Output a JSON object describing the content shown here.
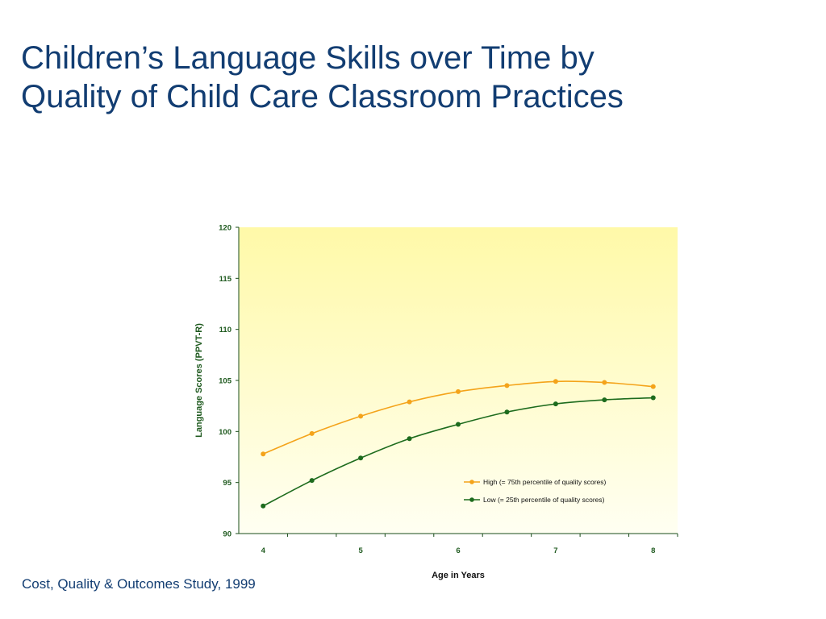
{
  "slide": {
    "title_line1": "Children’s Language Skills over Time by",
    "title_line2": "Quality of Child Care Classroom Practices",
    "source": "Cost, Quality & Outcomes Study, 1999"
  },
  "colors": {
    "title": "#123d72",
    "axis_text": "#1f5a1f",
    "axis_line": "#1a4d1a",
    "high_series": "#f4a31a",
    "low_series": "#1d6b1d",
    "plot_bg_top": "#fff9a8",
    "plot_bg_bottom": "#fffff2"
  },
  "chart_data": {
    "type": "line",
    "title": "",
    "xlabel": "Age in Years",
    "ylabel": "Language Scores (PPVT-R)",
    "xlim": [
      3.75,
      8.25
    ],
    "ylim": [
      90,
      120
    ],
    "xticks": [
      4,
      5,
      6,
      7,
      8
    ],
    "yticks": [
      90,
      95,
      100,
      105,
      110,
      115,
      120
    ],
    "grid": false,
    "legend": "bottom-right",
    "x": [
      4,
      4.5,
      5,
      5.5,
      6,
      6.5,
      7,
      7.5,
      8
    ],
    "series": [
      {
        "name": "High (= 75th percentile of quality scores)",
        "color": "#f4a31a",
        "values": [
          97.8,
          99.8,
          101.5,
          102.9,
          103.9,
          104.5,
          104.9,
          104.8,
          104.4
        ]
      },
      {
        "name": "Low (= 25th percentile of quality scores)",
        "color": "#1d6b1d",
        "values": [
          92.7,
          95.2,
          97.4,
          99.3,
          100.7,
          101.9,
          102.7,
          103.1,
          103.3
        ]
      }
    ]
  }
}
